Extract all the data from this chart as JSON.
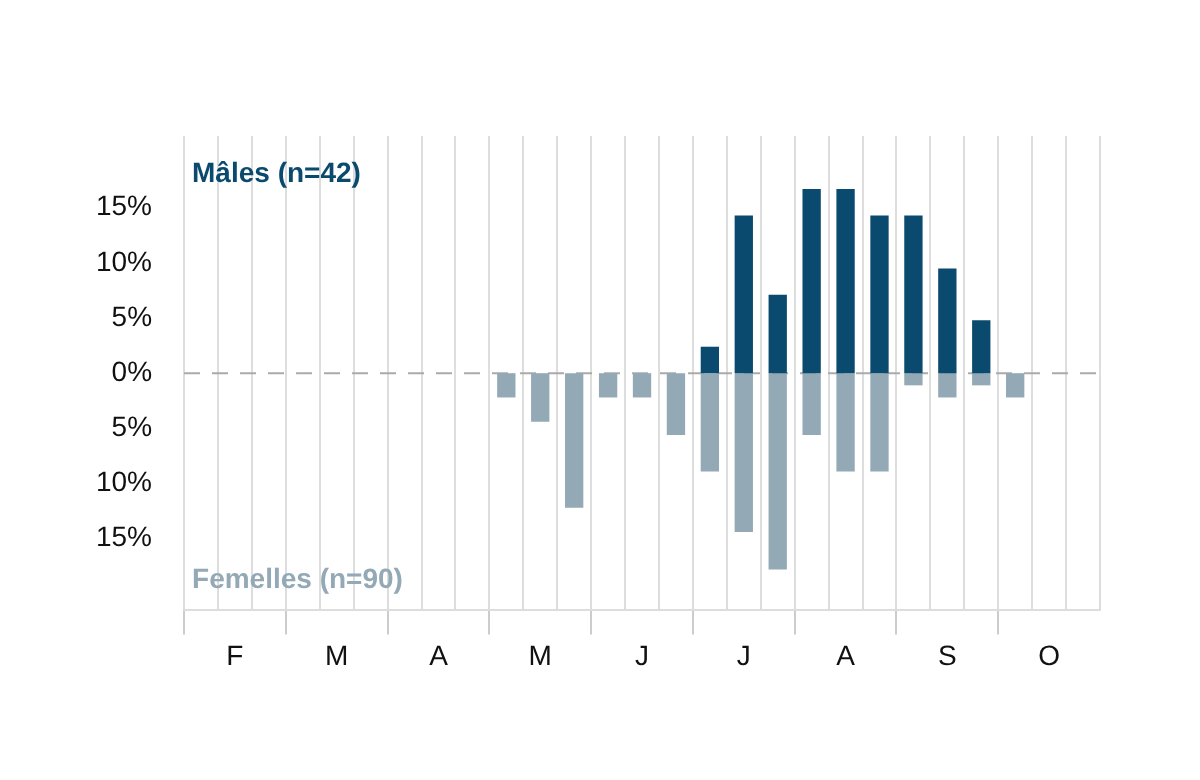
{
  "chart_data": {
    "type": "bar",
    "stacked": true,
    "categories": [
      null,
      "F",
      null,
      null,
      "M",
      null,
      null,
      "A",
      null,
      null,
      "M",
      null,
      null,
      "J",
      null,
      null,
      "J",
      null,
      null,
      "A",
      null,
      null,
      "S",
      null,
      null,
      "O",
      null
    ],
    "series": [
      {
        "name": "Mâles (n=42)",
        "color": "#0b4a6f",
        "values": [
          0,
          0,
          0,
          0,
          0,
          0,
          0,
          0,
          0,
          0,
          0,
          0,
          0,
          0,
          0,
          2.4,
          14.3,
          7.1,
          16.7,
          16.7,
          14.3,
          14.3,
          9.5,
          4.8,
          0,
          0,
          0
        ]
      },
      {
        "name": "Femelles (n=90)",
        "color": "#93a9b5",
        "values": [
          0,
          0,
          0,
          0,
          0,
          0,
          0,
          0,
          0,
          -2.2,
          -4.4,
          -12.2,
          -2.2,
          -2.2,
          -5.6,
          -8.9,
          -14.4,
          -17.8,
          -5.6,
          -8.9,
          -8.9,
          -1.1,
          -2.2,
          -1.1,
          -2.2,
          0,
          0
        ]
      }
    ],
    "ylim": [
      -21.5,
      21.5
    ],
    "yticks": [
      {
        "value": 15,
        "label": "15%"
      },
      {
        "value": 10,
        "label": "10%"
      },
      {
        "value": 5,
        "label": "5%"
      },
      {
        "value": 0,
        "label": "0%"
      },
      {
        "value": -5,
        "label": "5%"
      },
      {
        "value": -10,
        "label": "10%"
      },
      {
        "value": -15,
        "label": "15%"
      }
    ],
    "ref_lines": [
      {
        "axis": "y",
        "value": 0,
        "color": "#aaaaaa",
        "line_style": "dashed"
      }
    ],
    "grid": "x",
    "legend": false
  }
}
